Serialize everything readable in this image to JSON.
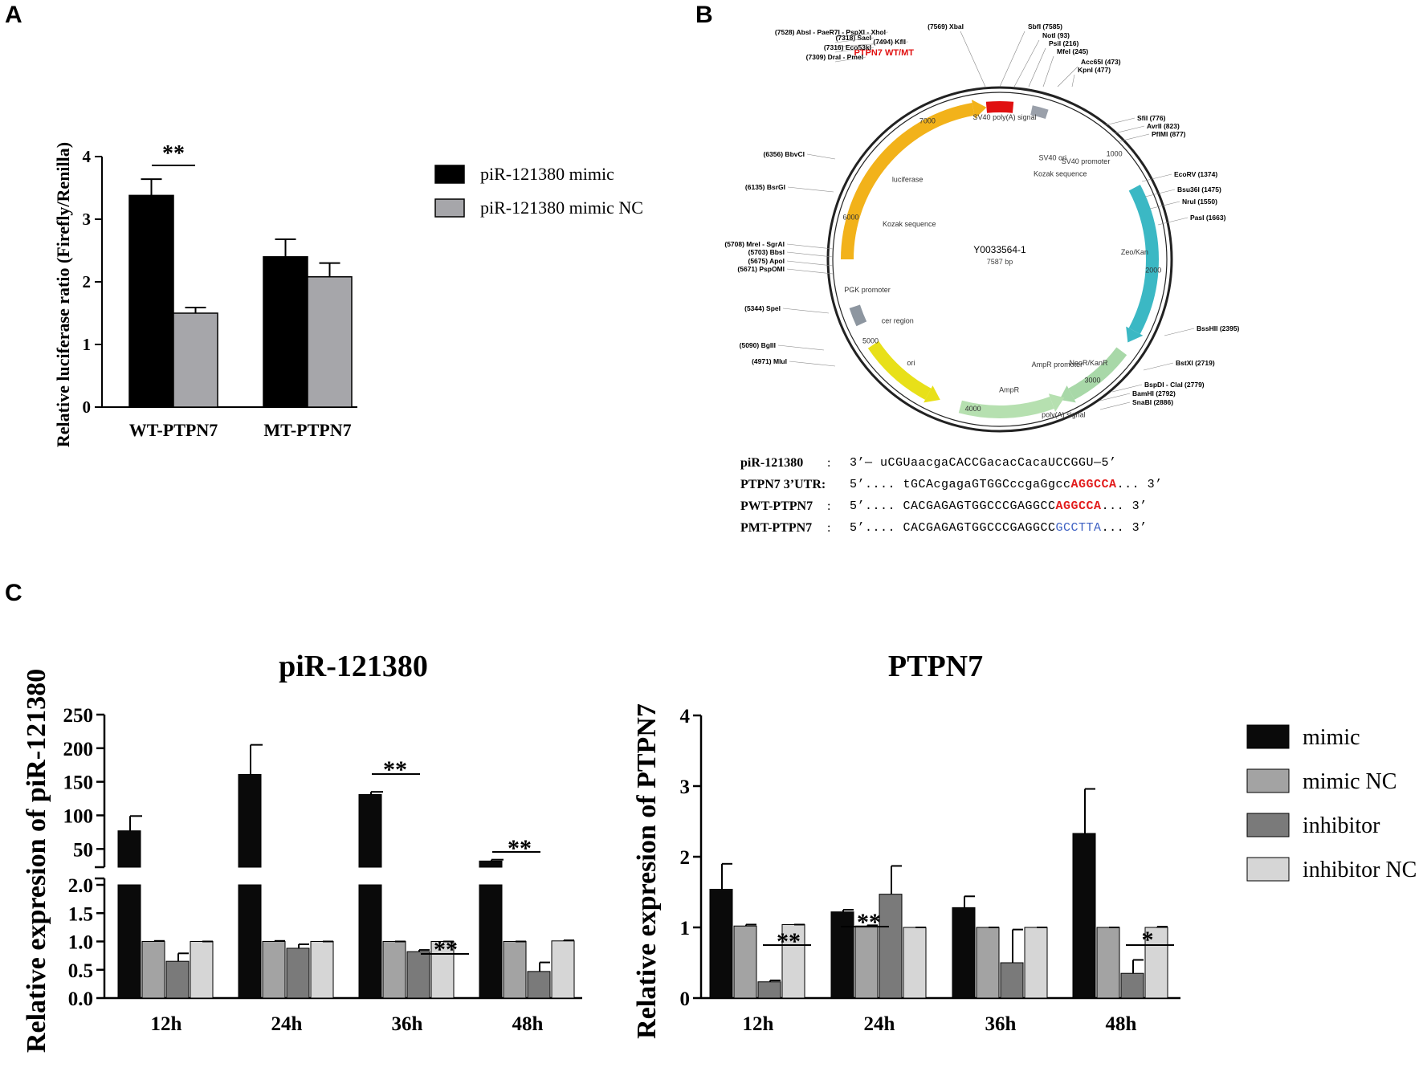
{
  "panels": {
    "a": "A",
    "b": "B",
    "c": "C"
  },
  "colors": {
    "black": "#000000",
    "grey_a": "#a6a6aa",
    "mimic": "#0a0a0a",
    "mimic_nc": "#a3a3a3",
    "inhibitor": "#7a7a7a",
    "inhibitor_nc": "#d6d6d6"
  },
  "chart_data": [
    {
      "id": "panel_a",
      "type": "bar",
      "title": "",
      "xlabel": "",
      "ylabel": "Relative luciferase ratio (Firefly/Renilla)",
      "categories": [
        "WT-PTPN7",
        "MT-PTPN7"
      ],
      "ylim": [
        0,
        4
      ],
      "yticks": [
        "0",
        "1",
        "2",
        "3",
        "4"
      ],
      "series": [
        {
          "name": "piR-121380 mimic",
          "values": [
            3.38,
            2.4
          ],
          "errors": [
            0.26,
            0.28
          ]
        },
        {
          "name": "piR-121380 mimic NC",
          "values": [
            1.5,
            2.08
          ],
          "errors": [
            0.09,
            0.22
          ]
        }
      ],
      "annotations": [
        {
          "text": "**",
          "category": "WT-PTPN7"
        }
      ],
      "legend": "right"
    },
    {
      "id": "panel_c_left",
      "type": "bar",
      "title": "piR-121380",
      "xlabel": "",
      "ylabel": "Relative expresion of piR-121380",
      "categories": [
        "12h",
        "24h",
        "36h",
        "48h"
      ],
      "axis_break": {
        "lower": [
          0,
          2
        ],
        "upper": [
          30,
          250
        ]
      },
      "yticks_lower": [
        "0.0",
        "0.5",
        "1.0",
        "1.5",
        "2.0"
      ],
      "yticks_upper": [
        "50",
        "100",
        "150",
        "200",
        "250"
      ],
      "series": [
        {
          "name": "mimic",
          "values": [
            77,
            161,
            131,
            32
          ],
          "errors": [
            22,
            44,
            4,
            2
          ]
        },
        {
          "name": "mimic NC",
          "values": [
            1.0,
            1.0,
            1.0,
            1.0
          ],
          "errors": [
            0.01,
            0.01,
            0.0,
            0.0
          ]
        },
        {
          "name": "inhibitor",
          "values": [
            0.65,
            0.88,
            0.82,
            0.47
          ],
          "errors": [
            0.14,
            0.07,
            0.03,
            0.16
          ]
        },
        {
          "name": "inhibitor NC",
          "values": [
            1.0,
            1.0,
            1.0,
            1.01
          ],
          "errors": [
            0.0,
            0.0,
            0.0,
            0.01
          ]
        }
      ],
      "annotations": [
        {
          "text": "**",
          "category": "36h",
          "pair": "mimic"
        },
        {
          "text": "**",
          "category": "36h",
          "pair": "inhibitor"
        },
        {
          "text": "**",
          "category": "48h",
          "pair": "mimic"
        }
      ]
    },
    {
      "id": "panel_c_right",
      "type": "bar",
      "title": "PTPN7",
      "xlabel": "",
      "ylabel": "Relative expresion of PTPN7",
      "categories": [
        "12h",
        "24h",
        "36h",
        "48h"
      ],
      "ylim": [
        0,
        4
      ],
      "yticks": [
        "0",
        "1",
        "2",
        "3",
        "4"
      ],
      "series": [
        {
          "name": "mimic",
          "values": [
            1.54,
            1.22,
            1.28,
            2.33
          ],
          "errors": [
            0.36,
            0.03,
            0.16,
            0.63
          ]
        },
        {
          "name": "mimic NC",
          "values": [
            1.02,
            1.02,
            1.0,
            1.0
          ],
          "errors": [
            0.02,
            0.01,
            0.0,
            0.0
          ]
        },
        {
          "name": "inhibitor",
          "values": [
            0.23,
            1.47,
            0.5,
            0.35
          ],
          "errors": [
            0.02,
            0.4,
            0.47,
            0.19
          ]
        },
        {
          "name": "inhibitor NC",
          "values": [
            1.04,
            1.0,
            1.0,
            1.0
          ],
          "errors": [
            0.0,
            0.0,
            0.0,
            0.01
          ]
        }
      ],
      "annotations": [
        {
          "text": "**",
          "category": "12h",
          "pair": "inhibitor"
        },
        {
          "text": "**",
          "category": "24h",
          "pair": "mimic"
        },
        {
          "text": "*",
          "category": "48h",
          "pair": "inhibitor"
        }
      ],
      "legend": "right"
    }
  ],
  "plasmid": {
    "name": "Y0033564-1",
    "size": "7587 bp",
    "insert_label": "PTPN7 WT/MT",
    "features": [
      "luciferase",
      "SV40 poly(A) signal",
      "SV40 promoter",
      "SV40 ori",
      "Kozak sequence",
      "Zeo/Kan",
      "NeoR/KanR",
      "AmpR promoter",
      "AmpR",
      "ori",
      "cer region",
      "PGK promoter",
      "Kozak sequence",
      "poly(A) signal"
    ],
    "tick_labels": [
      "1000",
      "2000",
      "3000",
      "4000",
      "5000",
      "6000",
      "7000"
    ],
    "sites_left": [
      "(7528)  AbsI - PaeR7I - PspXI - XhoI",
      "(7494)  KflI",
      "(7318)  SacI",
      "(7316)  Eco53kI",
      "(7309)  DraI - PmeI",
      "(6356)  BbvCI",
      "(6135)  BsrGI",
      "(5708)  MreI - SgrAI",
      "(5703)  BbsI",
      "(5675)  ApoI",
      "(5671)  PspOMI",
      "(5344)  SpeI",
      "(5090)  BglII",
      "(4971)  MluI"
    ],
    "sites_top": [
      "(7569)  XbaI",
      "SbfI  (7585)",
      "NotI  (93)",
      "PsiI  (216)",
      "MfeI  (245)",
      "Acc65I  (473)",
      "KpnI  (477)"
    ],
    "sites_right": [
      "SfiI  (776)",
      "AvrII  (823)",
      "PflMI  (877)",
      "EcoRV  (1374)",
      "Bsu36I  (1475)",
      "NruI  (1550)",
      "PasI  (1663)",
      "BssHII  (2395)",
      "BstXI  (2719)",
      "BspDI - ClaI  (2779)",
      "BamHI  (2792)",
      "SnaBI  (2886)"
    ]
  },
  "sequences": [
    {
      "name": "piR-121380",
      "parts": [
        {
          "t": "3’— uCGUaacgaCACCGacacCacaUCCGGU—5’",
          "s": ""
        }
      ]
    },
    {
      "name": "PTPN7 3’UTR:",
      "parts": [
        {
          "t": "5’.... tGCAcgagaGTGGCccgaGgcc",
          "s": ""
        },
        {
          "t": "AGGCCA",
          "s": "red"
        },
        {
          "t": "... 3’",
          "s": ""
        }
      ]
    },
    {
      "name": "PWT-PTPN7",
      "parts": [
        {
          "t": "5’.... CACGAGAGTGGCCCGAGGCC",
          "s": ""
        },
        {
          "t": "AGGCCA",
          "s": "red"
        },
        {
          "t": "... 3’",
          "s": ""
        }
      ]
    },
    {
      "name": "PMT-PTPN7",
      "parts": [
        {
          "t": "5’.... CACGAGAGTGGCCCGAGGCC",
          "s": ""
        },
        {
          "t": "GCCTTA",
          "s": "blue"
        },
        {
          "t": "... 3’",
          "s": ""
        }
      ]
    }
  ],
  "seq_colon": ":"
}
